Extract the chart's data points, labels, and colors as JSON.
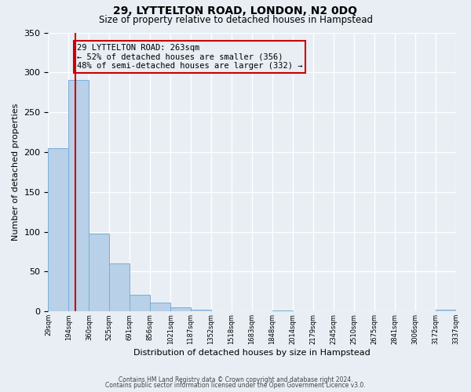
{
  "title": "29, LYTTELTON ROAD, LONDON, N2 0DQ",
  "subtitle": "Size of property relative to detached houses in Hampstead",
  "xlabel": "Distribution of detached houses by size in Hampstead",
  "ylabel": "Number of detached properties",
  "bar_values": [
    205,
    290,
    98,
    60,
    21,
    11,
    5,
    2,
    0,
    0,
    0,
    1,
    0,
    0,
    0,
    0,
    0,
    0,
    0,
    2
  ],
  "tick_labels": [
    "29sqm",
    "194sqm",
    "360sqm",
    "525sqm",
    "691sqm",
    "856sqm",
    "1021sqm",
    "1187sqm",
    "1352sqm",
    "1518sqm",
    "1683sqm",
    "1848sqm",
    "2014sqm",
    "2179sqm",
    "2345sqm",
    "2510sqm",
    "2675sqm",
    "2841sqm",
    "3006sqm",
    "3172sqm",
    "3337sqm"
  ],
  "bar_color": "#b8d0e8",
  "bar_edgecolor": "#7aaed6",
  "vline_x": 1.35,
  "vline_color": "#cc0000",
  "annotation_text": "29 LYTTELTON ROAD: 263sqm\n← 52% of detached houses are smaller (356)\n48% of semi-detached houses are larger (332) →",
  "annotation_box_color": "#cc0000",
  "ylim": [
    0,
    350
  ],
  "yticks": [
    0,
    50,
    100,
    150,
    200,
    250,
    300,
    350
  ],
  "background_color": "#e8eef4",
  "grid_color": "#ffffff",
  "footer_line1": "Contains HM Land Registry data © Crown copyright and database right 2024.",
  "footer_line2": "Contains public sector information licensed under the Open Government Licence v3.0."
}
